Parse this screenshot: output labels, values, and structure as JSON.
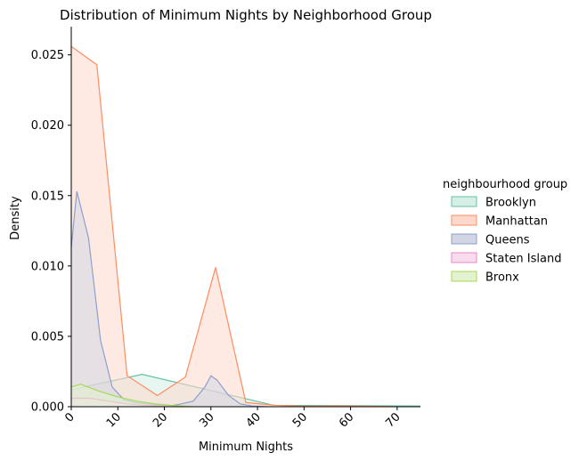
{
  "chart_data": {
    "type": "area",
    "title": "Distribution of Minimum Nights by Neighborhood Group",
    "xlabel": "Minimum Nights",
    "ylabel": "Density",
    "xlim": [
      0,
      75
    ],
    "ylim": [
      0,
      0.027
    ],
    "xticks": [
      "0",
      "10",
      "20",
      "30",
      "40",
      "50",
      "60",
      "70"
    ],
    "yticks": [
      "0.000",
      "0.005",
      "0.010",
      "0.015",
      "0.020",
      "0.025"
    ],
    "legend": {
      "title": "neighbourhood group",
      "placement": "right"
    },
    "series": [
      {
        "name": "Brooklyn",
        "color": "#66c2a5",
        "fill": "#d4efe6",
        "points": [
          [
            0,
            0.0012
          ],
          [
            15.2,
            0.0023
          ],
          [
            43.5,
            0.0001
          ],
          [
            75,
            5e-05
          ]
        ]
      },
      {
        "name": "Manhattan",
        "color": "#fc8d62",
        "fill": "#fed9cb",
        "points": [
          [
            0,
            0.0256
          ],
          [
            5.5,
            0.0243
          ],
          [
            12,
            0.0022
          ],
          [
            18.5,
            0.0008
          ],
          [
            24.5,
            0.0021
          ],
          [
            31,
            0.0099
          ],
          [
            37.5,
            0.0003
          ],
          [
            44,
            0.0001
          ],
          [
            50,
            3e-05
          ],
          [
            56.5,
            5e-05
          ],
          [
            63,
            3e-05
          ],
          [
            69,
            1e-05
          ]
        ]
      },
      {
        "name": "Queens",
        "color": "#8da0cb",
        "fill": "#d2d5e4",
        "points": [
          [
            0,
            0.0113
          ],
          [
            1.2,
            0.0153
          ],
          [
            3.7,
            0.012
          ],
          [
            6.3,
            0.0047
          ],
          [
            8.8,
            0.0014
          ],
          [
            11.3,
            0.0005
          ],
          [
            13.8,
            0.0003
          ],
          [
            16.3,
            0.0002
          ],
          [
            18.8,
            0.0001
          ],
          [
            21.2,
            5e-05
          ],
          [
            23.7,
            0.0002
          ],
          [
            26.2,
            0.0004
          ],
          [
            28.7,
            0.0014
          ],
          [
            30,
            0.0022
          ],
          [
            31.3,
            0.0019
          ],
          [
            33.8,
            0.0008
          ],
          [
            36.3,
            0.0002
          ],
          [
            38.8,
            5e-05
          ],
          [
            42,
            0
          ]
        ]
      },
      {
        "name": "Staten Island",
        "color": "#e78ac3",
        "fill": "#f8dcee",
        "points": [
          [
            0,
            0.0006
          ],
          [
            4,
            0.0006
          ],
          [
            8,
            0.0004
          ],
          [
            12,
            0.0002
          ],
          [
            16,
            0.0001
          ],
          [
            20,
            3e-05
          ],
          [
            24,
            0
          ]
        ]
      },
      {
        "name": "Bronx",
        "color": "#a6d854",
        "fill": "#e5f2cf",
        "points": [
          [
            0,
            0.0014
          ],
          [
            2,
            0.0016
          ],
          [
            6,
            0.0011
          ],
          [
            10,
            0.0007
          ],
          [
            14,
            0.0004
          ],
          [
            18,
            0.0002
          ],
          [
            22,
            8e-05
          ],
          [
            26,
            0
          ]
        ]
      }
    ]
  }
}
